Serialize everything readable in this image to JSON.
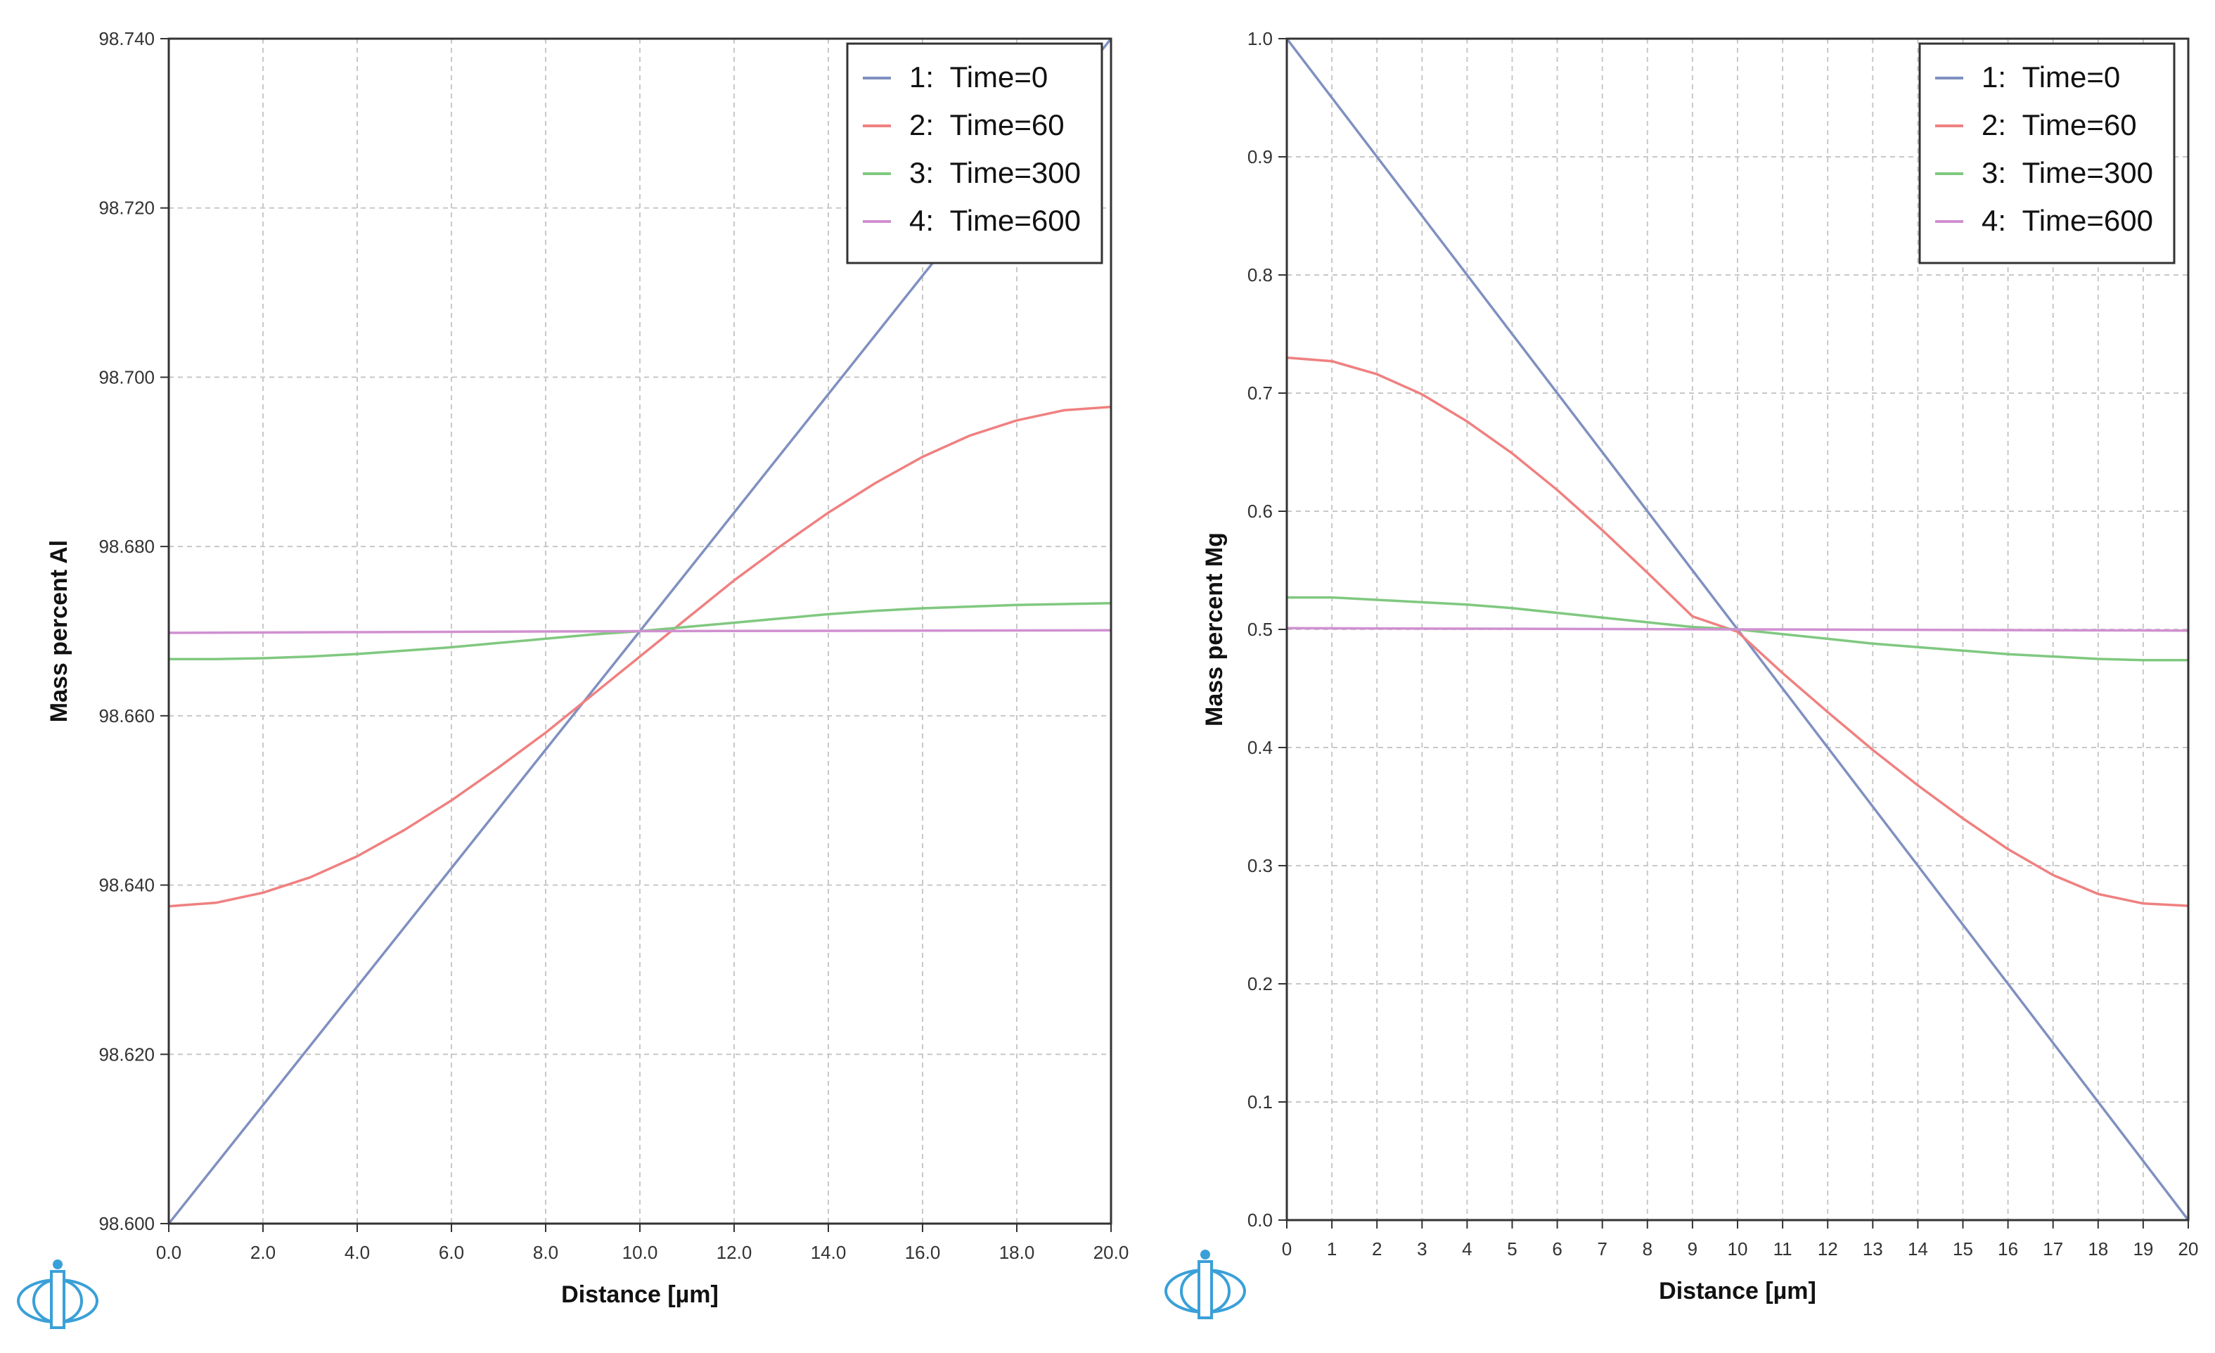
{
  "chart_data": [
    {
      "type": "line",
      "name": "left-chart",
      "title": "",
      "xlabel": "Distance [µm]",
      "ylabel": "Mass percent Al",
      "xlim": [
        0,
        20
      ],
      "ylim": [
        98.6,
        98.74
      ],
      "xticks": [
        "0.0",
        "2.0",
        "4.0",
        "6.0",
        "8.0",
        "10.0",
        "12.0",
        "14.0",
        "16.0",
        "18.0",
        "20.0"
      ],
      "xtick_values": [
        0,
        2,
        4,
        6,
        8,
        10,
        12,
        14,
        16,
        18,
        20
      ],
      "yticks": [
        "98.600",
        "98.620",
        "98.640",
        "98.660",
        "98.680",
        "98.700",
        "98.720",
        "98.740"
      ],
      "ytick_values": [
        98.6,
        98.62,
        98.64,
        98.66,
        98.68,
        98.7,
        98.72,
        98.74
      ],
      "grid": true,
      "legend_position": "top-right",
      "series": [
        {
          "name": "1:  Time=0",
          "color": "#8090c0",
          "x": [
            0,
            20
          ],
          "y": [
            98.6,
            98.74
          ]
        },
        {
          "name": "2:  Time=60",
          "color": "#f08080",
          "x": [
            0,
            1,
            2,
            3,
            4,
            5,
            6,
            7,
            8,
            9,
            10,
            11,
            12,
            13,
            14,
            15,
            16,
            17,
            18,
            19,
            20
          ],
          "y": [
            98.6375,
            98.6379,
            98.6391,
            98.6409,
            98.6434,
            98.6465,
            98.65,
            98.6539,
            98.658,
            98.6625,
            98.667,
            98.6715,
            98.676,
            98.6801,
            98.684,
            98.6875,
            98.6906,
            98.6931,
            98.6949,
            98.6961,
            98.6965
          ]
        },
        {
          "name": "3:  Time=300",
          "color": "#80c880",
          "x": [
            0,
            1,
            2,
            3,
            4,
            5,
            6,
            7,
            8,
            9,
            10,
            11,
            12,
            13,
            14,
            15,
            16,
            17,
            18,
            19,
            20
          ],
          "y": [
            98.6667,
            98.6667,
            98.6668,
            98.667,
            98.6673,
            98.6677,
            98.6681,
            98.6686,
            98.6691,
            98.6696,
            98.67,
            98.6705,
            98.671,
            98.6715,
            98.672,
            98.6724,
            98.6727,
            98.6729,
            98.6731,
            98.6732,
            98.6733
          ]
        },
        {
          "name": "4:  Time=600",
          "color": "#d090d0",
          "x": [
            0,
            10,
            20
          ],
          "y": [
            98.6698,
            98.67,
            98.6701
          ]
        }
      ]
    },
    {
      "type": "line",
      "name": "right-chart",
      "title": "",
      "xlabel": "Distance [µm]",
      "ylabel": "Mass percent Mg",
      "xlim": [
        0,
        20
      ],
      "ylim": [
        0,
        1.0
      ],
      "xticks": [
        "0",
        "1",
        "2",
        "3",
        "4",
        "5",
        "6",
        "7",
        "8",
        "9",
        "10",
        "11",
        "12",
        "13",
        "14",
        "15",
        "16",
        "17",
        "18",
        "19",
        "20"
      ],
      "xtick_values": [
        0,
        1,
        2,
        3,
        4,
        5,
        6,
        7,
        8,
        9,
        10,
        11,
        12,
        13,
        14,
        15,
        16,
        17,
        18,
        19,
        20
      ],
      "yticks": [
        "0.0",
        "0.1",
        "0.2",
        "0.3",
        "0.4",
        "0.5",
        "0.6",
        "0.7",
        "0.8",
        "0.9",
        "1.0"
      ],
      "ytick_values": [
        0,
        0.1,
        0.2,
        0.3,
        0.4,
        0.5,
        0.6,
        0.7,
        0.8,
        0.9,
        1.0
      ],
      "grid": true,
      "legend_position": "top-right",
      "series": [
        {
          "name": "1:  Time=0",
          "color": "#8090c0",
          "x": [
            0,
            20
          ],
          "y": [
            1.0,
            0.0
          ]
        },
        {
          "name": "2:  Time=60",
          "color": "#f08080",
          "x": [
            0,
            1,
            2,
            3,
            4,
            5,
            6,
            7,
            8,
            9,
            10,
            11,
            12,
            13,
            14,
            15,
            16,
            17,
            18,
            19,
            20
          ],
          "y": [
            0.73,
            0.727,
            0.716,
            0.699,
            0.676,
            0.649,
            0.618,
            0.584,
            0.548,
            0.511,
            0.498,
            0.463,
            0.43,
            0.398,
            0.368,
            0.34,
            0.314,
            0.292,
            0.276,
            0.268,
            0.266
          ]
        },
        {
          "name": "3:  Time=300",
          "color": "#80c880",
          "x": [
            0,
            1,
            2,
            3,
            4,
            5,
            6,
            7,
            8,
            9,
            10,
            11,
            12,
            13,
            14,
            15,
            16,
            17,
            18,
            19,
            20
          ],
          "y": [
            0.527,
            0.527,
            0.525,
            0.523,
            0.521,
            0.518,
            0.514,
            0.51,
            0.506,
            0.502,
            0.5,
            0.496,
            0.492,
            0.488,
            0.485,
            0.482,
            0.479,
            0.477,
            0.475,
            0.474,
            0.474
          ]
        },
        {
          "name": "4:  Time=600",
          "color": "#d090d0",
          "x": [
            0,
            10,
            20
          ],
          "y": [
            0.501,
            0.5,
            0.499
          ]
        }
      ]
    }
  ]
}
